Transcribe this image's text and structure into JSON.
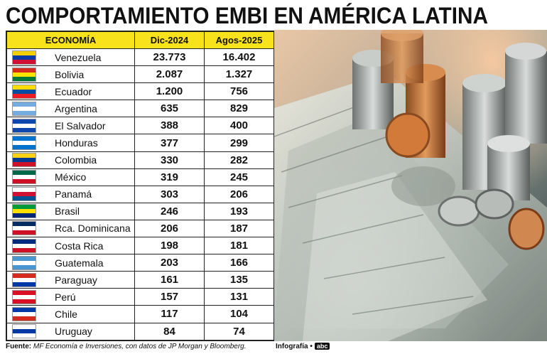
{
  "title": "COMPORTAMIENTO EMBI EN AMÉRICA LATINA",
  "table": {
    "headers": [
      "ECONOMÍA",
      "Dic-2024",
      "Agos-2025"
    ],
    "rows": [
      {
        "country": "Venezuela",
        "dec2024": "23.773",
        "aug2025": "16.402",
        "flag": "flag-venezuela-icon",
        "colors": [
          "#f4d000",
          "#0b3aa4",
          "#d21034"
        ]
      },
      {
        "country": "Bolivia",
        "dec2024": "2.087",
        "aug2025": "1.327",
        "flag": "flag-bolivia-icon",
        "colors": [
          "#d52b1e",
          "#f9e300",
          "#007934"
        ]
      },
      {
        "country": "Ecuador",
        "dec2024": "1.200",
        "aug2025": "756",
        "flag": "flag-ecuador-icon",
        "colors": [
          "#ffdd00",
          "#034ea2",
          "#ed1c24"
        ]
      },
      {
        "country": "Argentina",
        "dec2024": "635",
        "aug2025": "829",
        "flag": "flag-argentina-icon",
        "colors": [
          "#74acdf",
          "#ffffff",
          "#74acdf"
        ]
      },
      {
        "country": "El Salvador",
        "dec2024": "388",
        "aug2025": "400",
        "flag": "flag-el-salvador-icon",
        "colors": [
          "#0f47af",
          "#ffffff",
          "#0f47af"
        ]
      },
      {
        "country": "Honduras",
        "dec2024": "377",
        "aug2025": "299",
        "flag": "flag-honduras-icon",
        "colors": [
          "#0073cf",
          "#ffffff",
          "#0073cf"
        ]
      },
      {
        "country": "Colombia",
        "dec2024": "330",
        "aug2025": "282",
        "flag": "flag-colombia-icon",
        "colors": [
          "#fcd116",
          "#003893",
          "#ce1126"
        ]
      },
      {
        "country": "México",
        "dec2024": "319",
        "aug2025": "245",
        "flag": "flag-mexico-icon",
        "colors": [
          "#006847",
          "#ffffff",
          "#ce1126"
        ]
      },
      {
        "country": "Panamá",
        "dec2024": "303",
        "aug2025": "206",
        "flag": "flag-panama-icon",
        "colors": [
          "#ffffff",
          "#d21034",
          "#005293"
        ]
      },
      {
        "country": "Brasil",
        "dec2024": "246",
        "aug2025": "193",
        "flag": "flag-brazil-icon",
        "colors": [
          "#009c3b",
          "#ffdf00",
          "#002776"
        ]
      },
      {
        "country": "Rca. Dominicana",
        "dec2024": "206",
        "aug2025": "187",
        "flag": "flag-dominican-republic-icon",
        "colors": [
          "#002d62",
          "#ffffff",
          "#ce1126"
        ]
      },
      {
        "country": "Costa Rica",
        "dec2024": "198",
        "aug2025": "181",
        "flag": "flag-costa-rica-icon",
        "colors": [
          "#002b7f",
          "#ffffff",
          "#ce1126"
        ]
      },
      {
        "country": "Guatemala",
        "dec2024": "203",
        "aug2025": "166",
        "flag": "flag-guatemala-icon",
        "colors": [
          "#4997d0",
          "#ffffff",
          "#4997d0"
        ]
      },
      {
        "country": "Paraguay",
        "dec2024": "161",
        "aug2025": "135",
        "flag": "flag-paraguay-icon",
        "colors": [
          "#d52b1e",
          "#ffffff",
          "#0038a8"
        ]
      },
      {
        "country": "Perú",
        "dec2024": "157",
        "aug2025": "131",
        "flag": "flag-peru-icon",
        "colors": [
          "#d91023",
          "#ffffff",
          "#d91023"
        ]
      },
      {
        "country": "Chile",
        "dec2024": "117",
        "aug2025": "104",
        "flag": "flag-chile-icon",
        "colors": [
          "#0039a6",
          "#ffffff",
          "#d52b1e"
        ]
      },
      {
        "country": "Uruguay",
        "dec2024": "84",
        "aug2025": "74",
        "flag": "flag-uruguay-icon",
        "colors": [
          "#ffffff",
          "#0038a8",
          "#ffffff"
        ]
      }
    ]
  },
  "footer": {
    "label": "Fuente:",
    "text": "MF Economía e Inversiones, con datos de JP Morgan y Bloomberg."
  },
  "credit": {
    "label": "Infografía •",
    "logo": "abc"
  },
  "photo": {
    "icon": "money-coins-photo"
  }
}
